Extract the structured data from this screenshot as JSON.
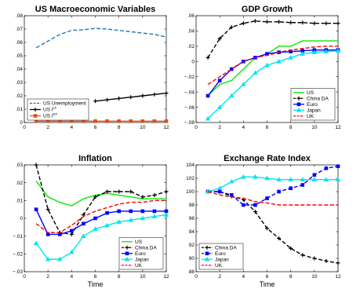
{
  "chart_data": [
    {
      "type": "line",
      "title": "US Macroeconomic Variables",
      "xlabel": "",
      "ylabel": "",
      "xlim": [
        0,
        12
      ],
      "ylim": [
        0,
        0.08
      ],
      "xticks": [
        0,
        2,
        4,
        6,
        8,
        10,
        12
      ],
      "yticks": [
        0,
        0.01,
        0.02,
        0.03,
        0.04,
        0.05,
        0.06,
        0.07,
        0.08
      ],
      "legend_position": "bottom-left",
      "series": [
        {
          "name": "US Unemployment",
          "label_sup": "",
          "color": "#1f77b4",
          "style": "dashed",
          "marker": "none",
          "x": [
            1,
            2,
            3,
            4,
            5,
            6,
            7,
            8,
            9,
            10,
            11,
            12
          ],
          "y": [
            0.056,
            0.061,
            0.066,
            0.069,
            0.0695,
            0.0705,
            0.07,
            0.069,
            0.068,
            0.067,
            0.066,
            0.064
          ]
        },
        {
          "name": "US i",
          "label_sup": "LT",
          "color": "#000000",
          "style": "solid",
          "marker": "plus",
          "x": [
            6,
            7,
            8,
            9,
            10,
            11,
            12
          ],
          "y": [
            0.016,
            0.017,
            0.018,
            0.019,
            0.02,
            0.021,
            0.022
          ]
        },
        {
          "name": "US i",
          "label_sup": "ST",
          "color": "#d95319",
          "style": "solid",
          "marker": "square",
          "x": [
            1,
            2,
            3,
            4,
            5,
            6,
            7,
            8,
            9,
            10,
            11,
            12
          ],
          "y": [
            0.001,
            0.001,
            0.001,
            0.001,
            0.001,
            0.001,
            0.001,
            0.001,
            0.001,
            0.001,
            0.001,
            0.001
          ]
        }
      ]
    },
    {
      "type": "line",
      "title": "GDP Growth",
      "xlabel": "",
      "ylabel": "",
      "xlim": [
        0,
        12
      ],
      "ylim": [
        -0.08,
        0.06
      ],
      "xticks": [
        0,
        2,
        4,
        6,
        8,
        10,
        12
      ],
      "yticks": [
        -0.08,
        -0.06,
        -0.04,
        -0.02,
        0,
        0.02,
        0.04,
        0.06
      ],
      "legend_position": "bottom-right",
      "series": [
        {
          "name": "US",
          "label_sup": "",
          "color": "#00ee00",
          "style": "solid",
          "marker": "none",
          "x": [
            1,
            2,
            3,
            4,
            5,
            6,
            7,
            8,
            9,
            10,
            11,
            12
          ],
          "y": [
            -0.045,
            -0.03,
            -0.025,
            -0.01,
            0.005,
            0.01,
            0.02,
            0.02,
            0.027,
            0.027,
            0.027,
            0.027
          ]
        },
        {
          "name": "China DA",
          "label_sup": "",
          "color": "#000000",
          "style": "dashed",
          "marker": "plus",
          "x": [
            1,
            2,
            3,
            4,
            5,
            6,
            7,
            8,
            9,
            10,
            11,
            12
          ],
          "y": [
            0.005,
            0.03,
            0.045,
            0.05,
            0.053,
            0.052,
            0.052,
            0.051,
            0.051,
            0.05,
            0.05,
            0.05
          ]
        },
        {
          "name": "Euro",
          "label_sup": "",
          "color": "#0000ff",
          "style": "solid",
          "marker": "square",
          "x": [
            1,
            2,
            3,
            4,
            5,
            6,
            7,
            8,
            9,
            10,
            11,
            12
          ],
          "y": [
            -0.045,
            -0.025,
            -0.01,
            0.0,
            0.005,
            0.01,
            0.012,
            0.013,
            0.014,
            0.015,
            0.015,
            0.015
          ]
        },
        {
          "name": "Japan",
          "label_sup": "",
          "color": "#00e5ee",
          "style": "solid",
          "marker": "triangle",
          "x": [
            1,
            2,
            3,
            4,
            5,
            6,
            7,
            8,
            9,
            10,
            11,
            12
          ],
          "y": [
            -0.075,
            -0.06,
            -0.045,
            -0.03,
            -0.015,
            -0.005,
            0.0,
            0.005,
            0.01,
            0.012,
            0.013,
            0.014
          ]
        },
        {
          "name": "UK",
          "label_sup": "",
          "color": "#ff0000",
          "style": "dashed",
          "marker": "none",
          "x": [
            1,
            2,
            3,
            4,
            5,
            6,
            7,
            8,
            9,
            10,
            11,
            12
          ],
          "y": [
            -0.03,
            -0.02,
            -0.01,
            0.0,
            0.005,
            0.008,
            0.012,
            0.015,
            0.017,
            0.019,
            0.02,
            0.02
          ]
        }
      ]
    },
    {
      "type": "line",
      "title": "Inflation",
      "xlabel": "Time",
      "ylabel": "",
      "xlim": [
        0,
        12
      ],
      "ylim": [
        -0.03,
        0.03
      ],
      "xticks": [
        0,
        2,
        4,
        6,
        8,
        10,
        12
      ],
      "yticks": [
        -0.03,
        -0.02,
        -0.01,
        0,
        0.01,
        0.02,
        0.03
      ],
      "legend_position": "bottom-right",
      "series": [
        {
          "name": "US",
          "label_sup": "",
          "color": "#00ee00",
          "style": "solid",
          "marker": "none",
          "x": [
            1,
            2,
            3,
            4,
            5,
            6,
            7,
            8,
            9,
            10,
            11,
            12
          ],
          "y": [
            0.021,
            0.012,
            0.009,
            0.007,
            0.011,
            0.013,
            0.014,
            0.013,
            0.012,
            0.011,
            0.011,
            0.011
          ]
        },
        {
          "name": "China DA",
          "label_sup": "",
          "color": "#000000",
          "style": "dashed",
          "marker": "plus",
          "x": [
            1,
            2,
            3,
            4,
            5,
            6,
            7,
            8,
            9,
            10,
            11,
            12
          ],
          "y": [
            0.03,
            0.005,
            -0.008,
            -0.009,
            0.002,
            0.012,
            0.015,
            0.015,
            0.015,
            0.012,
            0.013,
            0.015
          ]
        },
        {
          "name": "Euro",
          "label_sup": "",
          "color": "#0000ff",
          "style": "solid",
          "marker": "square",
          "x": [
            1,
            2,
            3,
            4,
            5,
            6,
            7,
            8,
            9,
            10,
            11,
            12
          ],
          "y": [
            0.005,
            -0.009,
            -0.009,
            -0.007,
            -0.003,
            0.0,
            0.003,
            0.004,
            0.004,
            0.004,
            0.004,
            0.004
          ]
        },
        {
          "name": "Japan",
          "label_sup": "",
          "color": "#00e5ee",
          "style": "solid",
          "marker": "triangle",
          "x": [
            1,
            2,
            3,
            4,
            5,
            6,
            7,
            8,
            9,
            10,
            11,
            12
          ],
          "y": [
            -0.014,
            -0.023,
            -0.023,
            -0.019,
            -0.01,
            -0.006,
            -0.004,
            -0.002,
            -0.001,
            0.0,
            0.001,
            0.002
          ]
        },
        {
          "name": "UK",
          "label_sup": "",
          "color": "#ff0000",
          "style": "dashed",
          "marker": "none",
          "x": [
            1,
            2,
            3,
            4,
            5,
            6,
            7,
            8,
            9,
            10,
            11,
            12
          ],
          "y": [
            -0.003,
            -0.008,
            -0.008,
            -0.004,
            0.001,
            0.004,
            0.006,
            0.008,
            0.009,
            0.009,
            0.01,
            0.01
          ]
        }
      ]
    },
    {
      "type": "line",
      "title": "Exchange Rate Index",
      "xlabel": "Time",
      "ylabel": "",
      "xlim": [
        0,
        12
      ],
      "ylim": [
        88,
        104
      ],
      "xticks": [
        0,
        2,
        4,
        6,
        8,
        10,
        12
      ],
      "yticks": [
        88,
        90,
        92,
        94,
        96,
        98,
        100,
        102,
        104
      ],
      "legend_position": "bottom-left",
      "series": [
        {
          "name": "China DA",
          "label_sup": "",
          "color": "#000000",
          "style": "dashed",
          "marker": "plus",
          "x": [
            1,
            2,
            3,
            4,
            5,
            6,
            7,
            8,
            9,
            10,
            11,
            12
          ],
          "y": [
            100,
            100,
            99.3,
            98.8,
            97,
            94.5,
            93,
            91.5,
            90.5,
            90,
            89.6,
            89.3
          ]
        },
        {
          "name": "Euro",
          "label_sup": "",
          "color": "#0000ff",
          "style": "dashed",
          "marker": "square",
          "x": [
            1,
            2,
            3,
            4,
            5,
            6,
            7,
            8,
            9,
            10,
            11,
            12
          ],
          "y": [
            100,
            100,
            99.5,
            98,
            98,
            99,
            100,
            100.5,
            101,
            102.5,
            103.5,
            103.8
          ]
        },
        {
          "name": "Japan",
          "label_sup": "",
          "color": "#00e5ee",
          "style": "solid",
          "marker": "triangle",
          "x": [
            1,
            2,
            3,
            4,
            5,
            6,
            7,
            8,
            9,
            10,
            11,
            12
          ],
          "y": [
            100,
            100.5,
            101.5,
            102.2,
            102.2,
            102,
            101.8,
            101.8,
            101.8,
            101.8,
            101.8,
            101.8
          ]
        },
        {
          "name": "UK",
          "label_sup": "",
          "color": "#ff0000",
          "style": "dashed",
          "marker": "none",
          "x": [
            1,
            2,
            3,
            4,
            5,
            6,
            7,
            8,
            9,
            10,
            11,
            12
          ],
          "y": [
            100,
            99.5,
            99.2,
            99,
            98.5,
            98.3,
            98,
            98,
            98,
            98,
            98,
            98
          ]
        }
      ]
    }
  ]
}
